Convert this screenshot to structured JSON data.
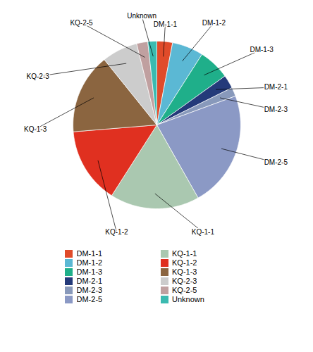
{
  "chart_data": {
    "type": "pie",
    "categories": [
      "DM-1-1",
      "DM-1-2",
      "DM-1-3",
      "DM-2-1",
      "DM-2-3",
      "DM-2-5",
      "KQ-1-1",
      "KQ-1-2",
      "KQ-1-3",
      "KQ-2-3",
      "KQ-2-5",
      "Unknown"
    ],
    "values": [
      3.5,
      7.0,
      7.0,
      3.0,
      2.0,
      26.0,
      20.0,
      17.0,
      18.0,
      8.0,
      2.5,
      2.0
    ],
    "colors": [
      "#E04B2A",
      "#5BB8D4",
      "#1FAF8A",
      "#243A7A",
      "#8899BB",
      "#8B99C5",
      "#AAC8B0",
      "#E03020",
      "#8B6540",
      "#CCCCCC",
      "#C0A0A0",
      "#3BBAB0"
    ],
    "legend": "bottom"
  }
}
